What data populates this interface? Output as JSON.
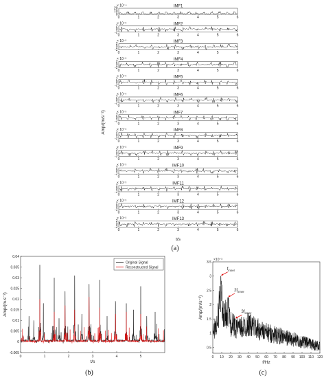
{
  "figure": {
    "caption_a": "(a)",
    "caption_b": "(b)",
    "caption_c": "(c)"
  },
  "chart_data": [
    {
      "id": "a",
      "type": "line",
      "title": "",
      "xlabel": "t/s",
      "ylabel": "Amp/(m/s⁻²)",
      "xlim": [
        0,
        6
      ],
      "x_ticks": [
        "0",
        "1",
        "2",
        "3",
        "4",
        "5",
        "6"
      ],
      "panels": [
        {
          "name": "IMF1",
          "exponent": "× 10⁻⁴",
          "y_ticks": [
            "20",
            "10",
            "0"
          ]
        },
        {
          "name": "IMF2",
          "exponent": "× 10⁻³",
          "y_ticks": [
            "2",
            "0",
            "-2"
          ]
        },
        {
          "name": "IMF3",
          "exponent": "× 10⁻³",
          "y_ticks": [
            "2",
            "0",
            "-2"
          ]
        },
        {
          "name": "IMF4",
          "exponent": "× 10⁻³",
          "y_ticks": [
            "2",
            "0",
            "-2"
          ]
        },
        {
          "name": "IMF5",
          "exponent": "× 10⁻³",
          "y_ticks": [
            "2",
            "0",
            "-2"
          ]
        },
        {
          "name": "IMF6",
          "exponent": "× 10⁻³",
          "y_ticks": [
            "2",
            "0",
            "-2"
          ]
        },
        {
          "name": "IMF7",
          "exponent": "× 10⁻³",
          "y_ticks": [
            "2",
            "0",
            "-2"
          ]
        },
        {
          "name": "IMF8",
          "exponent": "× 10⁻³",
          "y_ticks": [
            "2",
            "0",
            "-2"
          ]
        },
        {
          "name": "IMF9",
          "exponent": "× 10⁻³",
          "y_ticks": [
            "2",
            "0",
            "-2"
          ]
        },
        {
          "name": "IMF10",
          "exponent": "× 10⁻³",
          "y_ticks": [
            "2",
            "0",
            "-2"
          ]
        },
        {
          "name": "IMF11",
          "exponent": "× 10⁻³",
          "y_ticks": [
            "2",
            "0",
            "-2"
          ]
        },
        {
          "name": "IMF12",
          "exponent": "× 10⁻³",
          "y_ticks": [
            "2",
            "0",
            "-2"
          ]
        },
        {
          "name": "IMF13",
          "exponent": "× 10⁻³",
          "y_ticks": [
            "2",
            "0",
            "-2"
          ]
        }
      ]
    },
    {
      "id": "b",
      "type": "line",
      "title": "",
      "xlabel": "t/s",
      "ylabel": "Amp/(m.s⁻²)",
      "xlim": [
        0,
        6
      ],
      "ylim": [
        -0.005,
        0.04
      ],
      "x_ticks": [
        0,
        1,
        2,
        3,
        4,
        5
      ],
      "y_ticks": [
        -0.005,
        0,
        0.005,
        0.01,
        0.015,
        0.02,
        0.025,
        0.03,
        0.035,
        0.04
      ],
      "legend": "top-right",
      "series": [
        {
          "name": "Original Signal",
          "color": "#222222",
          "peaks": [
            {
              "t": 0.35,
              "v": 0.012
            },
            {
              "t": 0.55,
              "v": 0.01
            },
            {
              "t": 0.8,
              "v": 0.036
            },
            {
              "t": 0.95,
              "v": 0.018
            },
            {
              "t": 1.4,
              "v": 0.03
            },
            {
              "t": 1.6,
              "v": 0.011
            },
            {
              "t": 1.85,
              "v": 0.024
            },
            {
              "t": 2.25,
              "v": 0.031
            },
            {
              "t": 2.55,
              "v": 0.013
            },
            {
              "t": 2.85,
              "v": 0.027
            },
            {
              "t": 3.3,
              "v": 0.029
            },
            {
              "t": 3.6,
              "v": 0.012
            },
            {
              "t": 3.95,
              "v": 0.019
            },
            {
              "t": 4.4,
              "v": 0.018
            },
            {
              "t": 4.7,
              "v": 0.015
            },
            {
              "t": 5.0,
              "v": 0.026
            },
            {
              "t": 5.25,
              "v": 0.012
            },
            {
              "t": 5.6,
              "v": 0.014
            }
          ]
        },
        {
          "name": "Reconstructed Signal",
          "color": "#e01010",
          "peaks": [
            {
              "t": 0.8,
              "v": 0.02
            },
            {
              "t": 1.4,
              "v": 0.014
            },
            {
              "t": 1.85,
              "v": 0.017
            },
            {
              "t": 2.25,
              "v": 0.015
            },
            {
              "t": 2.85,
              "v": 0.021
            },
            {
              "t": 3.3,
              "v": 0.016
            },
            {
              "t": 3.95,
              "v": 0.013
            },
            {
              "t": 4.4,
              "v": 0.014
            },
            {
              "t": 5.0,
              "v": 0.013
            }
          ]
        }
      ]
    },
    {
      "id": "c",
      "type": "line",
      "title": "",
      "xlabel": "f/Hz",
      "ylabel": "Amp/(m/s⁻²)",
      "exponent": "×10⁻³",
      "xlim": [
        0,
        120
      ],
      "ylim": [
        0.3,
        3.5
      ],
      "x_ticks": [
        0,
        10,
        20,
        30,
        40,
        50,
        60,
        70,
        80,
        90,
        100,
        110,
        120
      ],
      "y_ticks": [
        0.5,
        1,
        1.5,
        2,
        2.5,
        3,
        3.5
      ],
      "annotations": [
        {
          "main": "f",
          "sub": "inner",
          "x": 9,
          "y": 3.0
        },
        {
          "main": "2f",
          "sub": "inner",
          "x": 17,
          "y": 2.25
        },
        {
          "main": "3f",
          "sub": "inner",
          "x": 25,
          "y": 1.5
        }
      ],
      "envelope": [
        {
          "f": 0,
          "v": 1.3
        },
        {
          "f": 5,
          "v": 1.6
        },
        {
          "f": 9,
          "v": 3.0
        },
        {
          "f": 12,
          "v": 1.8
        },
        {
          "f": 17,
          "v": 2.2
        },
        {
          "f": 20,
          "v": 1.6
        },
        {
          "f": 25,
          "v": 1.5
        },
        {
          "f": 30,
          "v": 1.4
        },
        {
          "f": 40,
          "v": 1.6
        },
        {
          "f": 45,
          "v": 1.5
        },
        {
          "f": 55,
          "v": 1.3
        },
        {
          "f": 60,
          "v": 1.25
        },
        {
          "f": 70,
          "v": 1.15
        },
        {
          "f": 80,
          "v": 1.05
        },
        {
          "f": 90,
          "v": 0.95
        },
        {
          "f": 100,
          "v": 0.85
        },
        {
          "f": 110,
          "v": 0.75
        },
        {
          "f": 120,
          "v": 0.65
        }
      ]
    }
  ]
}
